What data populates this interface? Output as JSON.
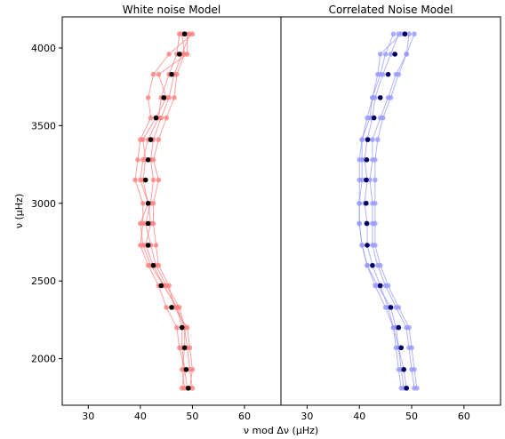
{
  "chart_data": [
    {
      "type": "scatter",
      "title": "White noise Model",
      "xlabel": "ν mod Δν (μHz)",
      "ylabel": "ν (μHz)",
      "xlim": [
        25,
        67
      ],
      "ylim": [
        1700,
        4200
      ],
      "xticks": [
        30,
        40,
        50,
        60
      ],
      "yticks": [
        2000,
        2500,
        3000,
        3500,
        4000
      ],
      "grid": false,
      "frequencies": [
        4090,
        3960,
        3830,
        3680,
        3550,
        3410,
        3280,
        3150,
        3000,
        2870,
        2730,
        2600,
        2470,
        2330,
        2200,
        2070,
        1930,
        1810
      ],
      "mean_color": "#000000",
      "sample_color": "#ff8080",
      "mean_x": [
        48.5,
        47.5,
        46.0,
        44.5,
        43.0,
        42.0,
        41.5,
        41.0,
        41.5,
        41.5,
        41.5,
        42.5,
        44.0,
        46.0,
        48.0,
        48.5,
        48.8,
        49.2
      ],
      "series": [
        {
          "values": [
            47.5,
            47.0,
            45.5,
            44.0,
            43.5,
            41.5,
            40.5,
            40.0,
            41.5,
            42.0,
            41.0,
            42.5,
            44.5,
            47.0,
            48.0,
            48.0,
            48.5,
            49.0
          ]
        },
        {
          "values": [
            49.5,
            48.0,
            46.5,
            45.5,
            44.0,
            42.5,
            42.0,
            42.5,
            42.0,
            41.0,
            42.0,
            43.0,
            45.0,
            47.5,
            48.5,
            49.0,
            49.5,
            50.0
          ]
        },
        {
          "values": [
            50.0,
            45.5,
            42.5,
            41.5,
            42.0,
            40.0,
            39.5,
            39.0,
            40.5,
            40.5,
            40.0,
            41.5,
            43.5,
            45.0,
            47.0,
            47.5,
            48.5,
            48.0
          ]
        },
        {
          "values": [
            48.0,
            48.5,
            47.0,
            46.5,
            45.0,
            43.5,
            42.5,
            43.5,
            42.5,
            42.5,
            43.0,
            43.5,
            45.5,
            46.5,
            49.0,
            49.5,
            50.0,
            49.5
          ]
        },
        {
          "values": [
            49.0,
            49.0,
            43.5,
            45.0,
            43.0,
            40.5,
            41.0,
            40.5,
            41.5,
            40.0,
            40.5,
            42.0,
            44.5,
            47.0,
            48.5,
            48.5,
            48.0,
            48.5
          ]
        }
      ]
    },
    {
      "type": "scatter",
      "title": "Correlated Noise Model",
      "xlabel": "",
      "ylabel": "",
      "xlim": [
        25,
        67
      ],
      "ylim": [
        1700,
        4200
      ],
      "xticks": [
        30,
        40,
        50,
        60
      ],
      "yticks": [
        2000,
        2500,
        3000,
        3500,
        4000
      ],
      "grid": false,
      "frequencies": [
        4090,
        3960,
        3830,
        3680,
        3550,
        3410,
        3280,
        3150,
        3000,
        2870,
        2730,
        2600,
        2470,
        2330,
        2200,
        2070,
        1930,
        1810
      ],
      "mean_color": "#000060",
      "sample_color": "#9999ff",
      "mean_x": [
        48.7,
        46.8,
        45.5,
        44.0,
        42.8,
        41.6,
        41.4,
        41.3,
        41.3,
        41.4,
        41.5,
        42.5,
        44.0,
        46.0,
        47.5,
        48.0,
        48.5,
        49.0
      ],
      "series": [
        {
          "values": [
            46.5,
            45.0,
            44.0,
            42.5,
            41.5,
            40.5,
            40.0,
            40.0,
            40.0,
            40.0,
            40.5,
            41.5,
            43.0,
            45.0,
            46.5,
            47.0,
            47.5,
            48.0
          ]
        },
        {
          "values": [
            50.5,
            49.0,
            47.5,
            46.0,
            44.5,
            43.5,
            43.0,
            43.0,
            43.0,
            43.0,
            43.0,
            44.0,
            45.5,
            47.5,
            49.5,
            50.0,
            50.5,
            51.0
          ]
        },
        {
          "values": [
            48.0,
            44.0,
            43.5,
            42.5,
            42.0,
            40.5,
            40.5,
            40.5,
            40.0,
            40.0,
            40.5,
            41.5,
            43.5,
            46.0,
            47.0,
            47.5,
            48.0,
            48.5
          ]
        },
        {
          "values": [
            49.5,
            49.0,
            47.0,
            45.5,
            44.0,
            42.5,
            42.5,
            42.0,
            42.5,
            42.5,
            42.5,
            43.5,
            45.0,
            47.0,
            49.0,
            49.5,
            50.0,
            50.5
          ]
        },
        {
          "values": [
            47.5,
            46.0,
            44.5,
            43.0,
            42.5,
            41.5,
            41.0,
            41.5,
            41.0,
            41.5,
            41.5,
            42.5,
            44.0,
            45.5,
            46.5,
            47.5,
            48.5,
            49.0
          ]
        }
      ]
    }
  ]
}
